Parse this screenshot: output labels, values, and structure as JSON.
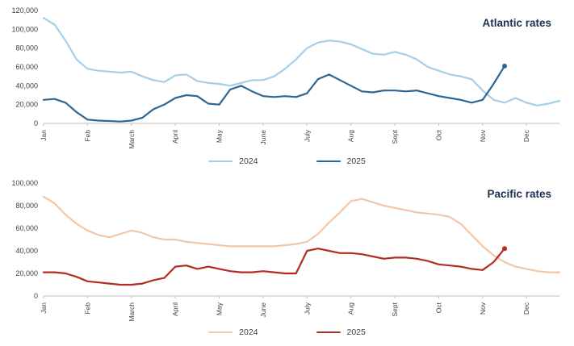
{
  "page": {
    "background": "#ffffff",
    "text_color": "#404040",
    "title_color": "#1E2F52"
  },
  "chart_data": [
    {
      "type": "line",
      "title": "Atlantic rates",
      "xlabel": "",
      "ylabel": "",
      "ylim": [
        0,
        120000
      ],
      "ytick_step": 20000,
      "grid": false,
      "legend_position": "bottom-center",
      "x_tick_labels": [
        "Jan",
        "Feb",
        "March",
        "April",
        "May",
        "June",
        "July",
        "Aug",
        "Sept",
        "Oct",
        "Nov",
        "Dec"
      ],
      "points_per_month": 4,
      "series": [
        {
          "name": "2024",
          "color": "#A5CEE8",
          "marker_last": false,
          "values": [
            112000,
            105000,
            88000,
            68000,
            58000,
            56000,
            55000,
            54000,
            55000,
            50000,
            46000,
            44000,
            51000,
            52000,
            45000,
            43000,
            42000,
            40000,
            43000,
            46000,
            46000,
            50000,
            58000,
            68000,
            80000,
            86000,
            88000,
            87000,
            84000,
            79000,
            74000,
            73000,
            76000,
            73000,
            68000,
            60000,
            56000,
            52000,
            50000,
            47000,
            35000,
            25000,
            22000,
            27000,
            22000,
            19000,
            21000,
            24000
          ]
        },
        {
          "name": "2025",
          "color": "#2C6695",
          "marker_last": true,
          "values": [
            25000,
            26000,
            22000,
            12000,
            4000,
            3000,
            2500,
            2000,
            3000,
            6000,
            15000,
            20000,
            27000,
            30000,
            29000,
            21000,
            20000,
            36000,
            40000,
            34000,
            29000,
            28000,
            29000,
            28000,
            32000,
            47000,
            52000,
            46000,
            40000,
            34000,
            33000,
            35000,
            35000,
            34000,
            35000,
            32000,
            29000,
            27000,
            25000,
            22000,
            25000,
            42000,
            61000
          ]
        }
      ]
    },
    {
      "type": "line",
      "title": "Pacific rates",
      "xlabel": "",
      "ylabel": "",
      "ylim": [
        0,
        100000
      ],
      "ytick_step": 20000,
      "grid": false,
      "legend_position": "bottom-center",
      "x_tick_labels": [
        "Jan",
        "Feb",
        "March",
        "April",
        "May",
        "June",
        "July",
        "Aug",
        "Sept",
        "Oct",
        "Nov",
        "Dec"
      ],
      "points_per_month": 4,
      "series": [
        {
          "name": "2024",
          "color": "#F3C6A5",
          "marker_last": false,
          "values": [
            88000,
            82000,
            72000,
            64000,
            58000,
            54000,
            52000,
            55000,
            58000,
            56000,
            52000,
            50000,
            50000,
            48000,
            47000,
            46000,
            45000,
            44000,
            44000,
            44000,
            44000,
            44000,
            45000,
            46000,
            48000,
            55000,
            65000,
            74000,
            84000,
            86000,
            83000,
            80000,
            78000,
            76000,
            74000,
            73000,
            72000,
            70000,
            64000,
            54000,
            44000,
            36000,
            30000,
            26000,
            24000,
            22000,
            21000,
            21000
          ]
        },
        {
          "name": "2025",
          "color": "#B42B22",
          "marker_last": true,
          "values": [
            21000,
            21000,
            20000,
            17000,
            13000,
            12000,
            11000,
            10000,
            10000,
            11000,
            14000,
            16000,
            26000,
            27000,
            24000,
            26000,
            24000,
            22000,
            21000,
            21000,
            22000,
            21000,
            20000,
            20000,
            40000,
            42000,
            40000,
            38000,
            38000,
            37000,
            35000,
            33000,
            34000,
            34000,
            33000,
            31000,
            28000,
            27000,
            26000,
            24000,
            23000,
            30000,
            42000
          ]
        }
      ]
    }
  ]
}
